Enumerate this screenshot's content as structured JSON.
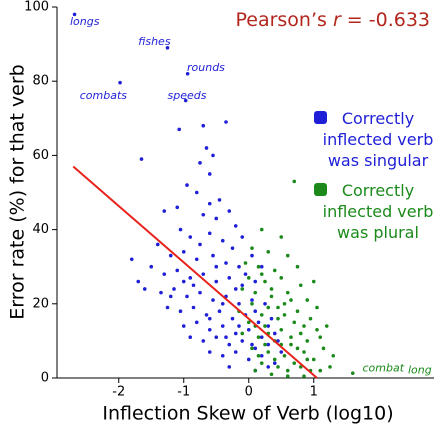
{
  "chart_data": {
    "type": "scatter",
    "xlabel": "Inflection Skew of Verb (log10)",
    "ylabel": "Error rate (%) for that verb",
    "annotation_parts": [
      "Pearson’s ",
      "r",
      " = -0.633"
    ],
    "annotation_color": "#b3261e",
    "xlim": [
      -2.95,
      2.85
    ],
    "ylim": [
      0,
      100
    ],
    "xticks": [
      -2,
      -1,
      0,
      1
    ],
    "yticks": [
      0,
      20,
      40,
      60,
      80,
      100
    ],
    "fit_line": {
      "color": "#e8221b",
      "x": [
        -2.7,
        1.05
      ],
      "y": [
        57,
        0
      ]
    },
    "series": [
      {
        "name": "Correctly inflected verb was singular",
        "color": "#1f1fd8",
        "x": [
          -2.68,
          -1.25,
          -0.94,
          -1.98,
          -0.97,
          -1.07,
          -0.7,
          -0.35,
          -1.65,
          -0.75,
          -0.6,
          -0.55,
          -1.3,
          -1.1,
          -0.8,
          -0.6,
          -0.7,
          -0.5,
          -0.3,
          -0.2,
          -1.05,
          -0.9,
          -0.6,
          -0.4,
          -0.1,
          -1.4,
          -1.2,
          -1.0,
          -0.8,
          -0.55,
          -0.35,
          -0.15,
          0.05,
          -1.5,
          -1.3,
          -1.1,
          -0.9,
          -0.7,
          -0.5,
          -0.3,
          -0.1,
          0.1,
          -1.6,
          -1.35,
          -1.15,
          -0.95,
          -0.75,
          -0.55,
          -0.35,
          -0.15,
          0.05,
          0.25,
          -1.25,
          -1.05,
          -0.85,
          -0.65,
          -0.45,
          -0.25,
          -0.05,
          0.15,
          0.35,
          -1.0,
          -0.8,
          -0.6,
          -0.4,
          -0.2,
          0.0,
          0.2,
          0.4,
          -0.9,
          -0.7,
          -0.5,
          -0.3,
          -0.1,
          0.1,
          0.3,
          0.5,
          -0.6,
          -0.4,
          -0.2,
          0.0,
          0.2,
          0.4,
          -0.3,
          0.1,
          0.3,
          -1.7,
          -1.8,
          -0.95,
          -0.65,
          -0.45,
          -0.25,
          0.2,
          -0.05,
          -0.85,
          -0.4,
          -0.6,
          -0.15,
          0.1,
          -1.2,
          -1.0,
          -0.5,
          -0.75,
          -0.2,
          0.3,
          0.45,
          -0.35,
          0.05
        ],
        "y": [
          98,
          89,
          82,
          79.6,
          74.8,
          67,
          68,
          69,
          59,
          58,
          55,
          60,
          45,
          46,
          50,
          47,
          44,
          43,
          45,
          41,
          40,
          38,
          39,
          37,
          38,
          36,
          33,
          34,
          32,
          33,
          31,
          30,
          33,
          30,
          28,
          29,
          27,
          28,
          26,
          27,
          25,
          26,
          24,
          23,
          24,
          22,
          23,
          21,
          22,
          20,
          21,
          20,
          19,
          18,
          19,
          17,
          18,
          16,
          17,
          15,
          16,
          14,
          15,
          13,
          14,
          12,
          13,
          11,
          12,
          11,
          10,
          11,
          9,
          10,
          8,
          9,
          7,
          7,
          6,
          7,
          5,
          6,
          4,
          3,
          2,
          3,
          26,
          32,
          52,
          62,
          48,
          35,
          30,
          28,
          25,
          20,
          16,
          14,
          18,
          22,
          26,
          30,
          36,
          24,
          14,
          10,
          11,
          9
        ]
      },
      {
        "name": "Correctly inflected verb was plural",
        "color": "#1b8a1b",
        "x": [
          0.7,
          1.6,
          0.2,
          0.5,
          0.05,
          0.3,
          0.6,
          -0.05,
          0.15,
          0.4,
          0.75,
          0.0,
          0.25,
          0.5,
          0.8,
          1.0,
          -0.1,
          0.1,
          0.35,
          0.6,
          0.9,
          0.05,
          0.3,
          0.55,
          0.75,
          1.05,
          -0.15,
          0.2,
          0.45,
          0.7,
          0.95,
          1.2,
          0.0,
          0.25,
          0.5,
          0.8,
          1.1,
          -0.1,
          0.15,
          0.4,
          0.65,
          0.9,
          1.15,
          0.05,
          0.3,
          0.55,
          0.85,
          1.0,
          0.2,
          0.45,
          0.7,
          0.95,
          1.25,
          0.35,
          0.6,
          0.85,
          0.1,
          0.4,
          0.65,
          0.3,
          0.55,
          0.85,
          0.15,
          0.75,
          1.05,
          0.5,
          0.25,
          0.6,
          0.9,
          0.35,
          0.65,
          0.2,
          0.1,
          0.45,
          1.3,
          1.1,
          0.8
        ],
        "y": [
          53,
          1.3,
          40,
          38,
          35,
          34,
          33,
          31,
          30,
          29,
          30,
          27,
          26,
          27,
          25,
          26,
          24,
          23,
          22,
          23,
          21,
          20,
          19,
          20,
          18,
          19,
          18,
          17,
          16,
          15,
          16,
          14,
          15,
          14,
          13,
          12,
          11,
          12,
          11,
          10,
          9,
          10,
          8,
          8,
          7,
          6,
          7,
          5,
          4,
          3,
          4,
          2,
          3,
          1,
          0.5,
          0.5,
          2,
          5,
          11,
          12,
          17,
          14,
          6,
          8,
          13,
          9,
          9,
          2,
          5,
          24,
          21,
          28,
          14,
          19,
          6,
          2,
          3
        ]
      }
    ],
    "annotations": [
      {
        "text": "longs",
        "x": -2.75,
        "y": 96,
        "series": 0
      },
      {
        "text": "fishes",
        "x": -1.7,
        "y": 90.5,
        "series": 0
      },
      {
        "text": "rounds",
        "x": -0.95,
        "y": 83.5,
        "series": 0
      },
      {
        "text": "combats",
        "x": -2.6,
        "y": 76,
        "series": 0
      },
      {
        "text": "speeds",
        "x": -1.25,
        "y": 76,
        "series": 0
      },
      {
        "text": "combat",
        "x": 1.75,
        "y": 2.5,
        "series": 1
      },
      {
        "text": "long",
        "x": 2.45,
        "y": 2,
        "series": 1
      }
    ]
  }
}
